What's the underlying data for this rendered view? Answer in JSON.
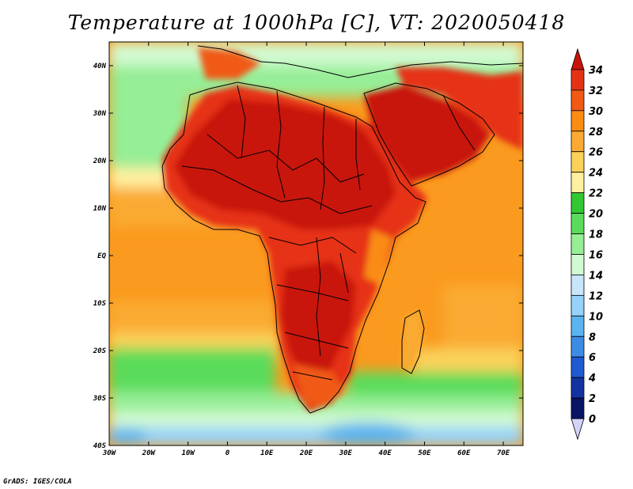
{
  "title": "Temperature at 1000hPa [C], VT: 2020050418",
  "footer": "GrADS: IGES/COLA",
  "map": {
    "lon_range": [
      -30,
      75
    ],
    "lat_range": [
      -40,
      45
    ],
    "x_ticks": [
      {
        "lon": -30,
        "label": "30W"
      },
      {
        "lon": -20,
        "label": "20W"
      },
      {
        "lon": -10,
        "label": "10W"
      },
      {
        "lon": 0,
        "label": "0"
      },
      {
        "lon": 10,
        "label": "10E"
      },
      {
        "lon": 20,
        "label": "20E"
      },
      {
        "lon": 30,
        "label": "30E"
      },
      {
        "lon": 40,
        "label": "40E"
      },
      {
        "lon": 50,
        "label": "50E"
      },
      {
        "lon": 60,
        "label": "60E"
      },
      {
        "lon": 70,
        "label": "70E"
      }
    ],
    "y_ticks": [
      {
        "lat": 40,
        "label": "40N"
      },
      {
        "lat": 30,
        "label": "30N"
      },
      {
        "lat": 20,
        "label": "20N"
      },
      {
        "lat": 10,
        "label": "10N"
      },
      {
        "lat": 0,
        "label": "EQ"
      },
      {
        "lat": -10,
        "label": "10S"
      },
      {
        "lat": -20,
        "label": "20S"
      },
      {
        "lat": -30,
        "label": "30S"
      },
      {
        "lat": -40,
        "label": "40S"
      }
    ]
  },
  "colorbar": {
    "labels": [
      "34",
      "32",
      "30",
      "28",
      "26",
      "24",
      "22",
      "20",
      "18",
      "16",
      "14",
      "12",
      "10",
      "8",
      "6",
      "4",
      "2",
      "0"
    ],
    "colors": [
      "#c8140a",
      "#e63214",
      "#f05a14",
      "#fa8c14",
      "#faaa32",
      "#fad25a",
      "#fff0a0",
      "#32c832",
      "#5adc5a",
      "#96ee96",
      "#d2fad2",
      "#c8e6fa",
      "#96d2fa",
      "#5ab4f0",
      "#3c8ce6",
      "#1e5ad2",
      "#1432a0",
      "#0a1464",
      "#d2d2fa"
    ]
  }
}
